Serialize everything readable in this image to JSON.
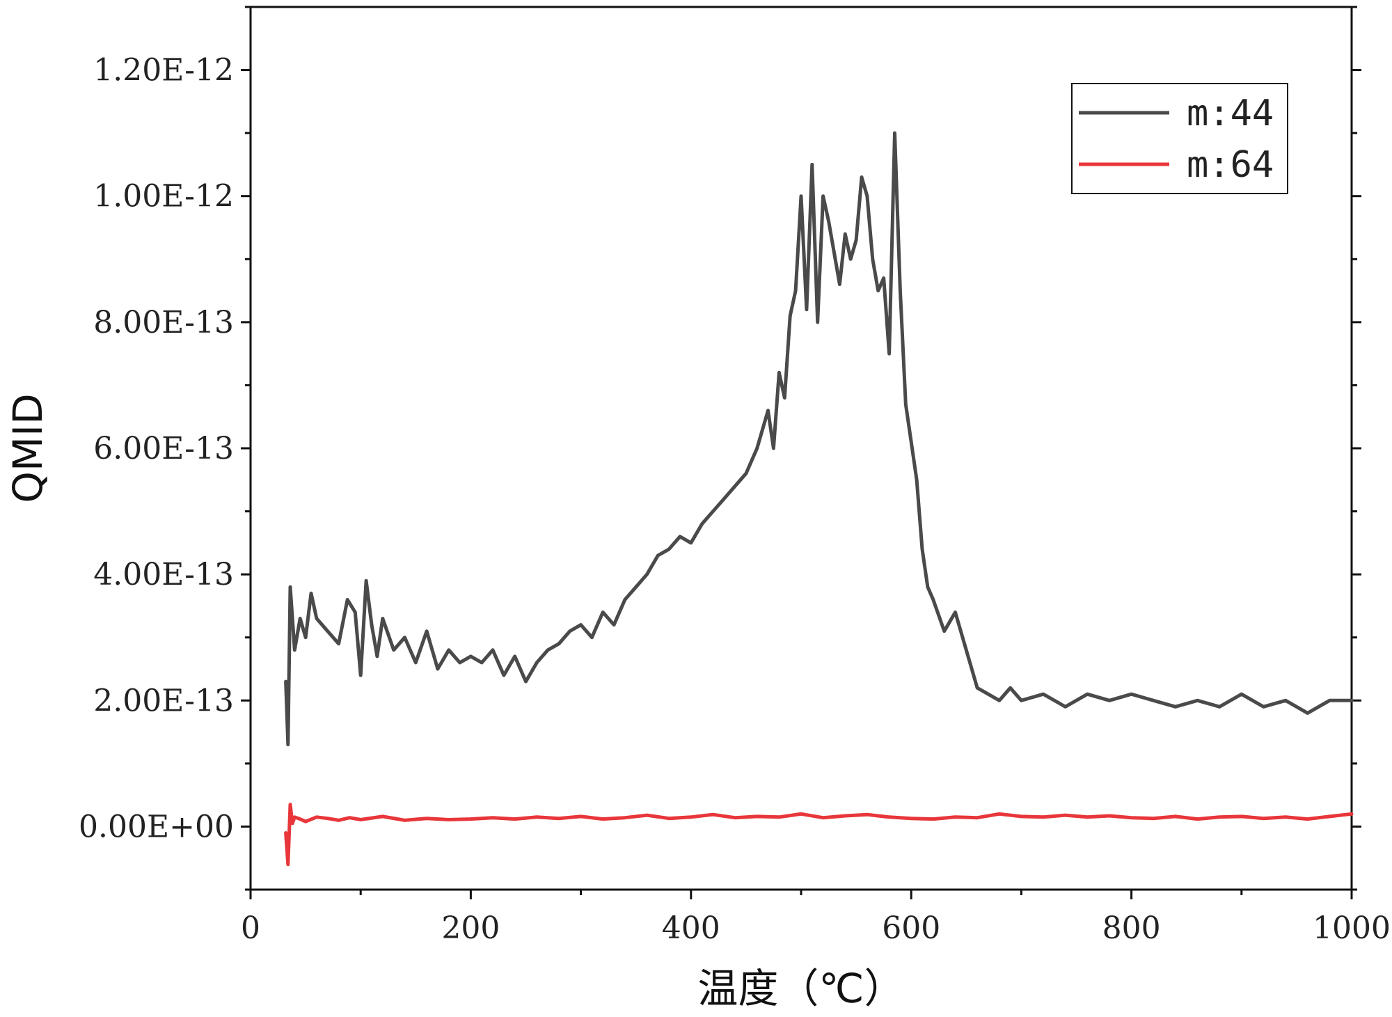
{
  "chart_data": {
    "type": "line",
    "title": "",
    "xlabel": "温度（℃）",
    "ylabel": "QMID",
    "xlim": [
      0,
      1000
    ],
    "ylim": [
      -1e-13,
      1.3e-12
    ],
    "x_ticks": [
      "0",
      "200",
      "400",
      "600",
      "800",
      "1000"
    ],
    "y_ticks": [
      "0.00E+00",
      "2.00E-13",
      "4.00E-13",
      "6.00E-13",
      "8.00E-13",
      "1.00E-12",
      "1.20E-12"
    ],
    "legend_position": "top-right",
    "grid": false,
    "series": [
      {
        "name": "m:44",
        "color": "#4a4a4a",
        "x": [
          32,
          34,
          36,
          40,
          45,
          50,
          55,
          60,
          70,
          80,
          88,
          95,
          100,
          105,
          110,
          115,
          120,
          130,
          140,
          150,
          160,
          170,
          180,
          190,
          200,
          210,
          220,
          230,
          240,
          250,
          260,
          270,
          280,
          290,
          300,
          310,
          320,
          330,
          340,
          350,
          360,
          370,
          380,
          390,
          400,
          410,
          420,
          430,
          440,
          450,
          460,
          470,
          475,
          480,
          485,
          490,
          495,
          500,
          505,
          510,
          515,
          520,
          525,
          530,
          535,
          540,
          545,
          550,
          555,
          560,
          565,
          570,
          575,
          580,
          585,
          590,
          595,
          600,
          605,
          610,
          615,
          620,
          630,
          640,
          650,
          660,
          670,
          680,
          690,
          700,
          720,
          740,
          760,
          780,
          800,
          820,
          840,
          860,
          880,
          900,
          920,
          940,
          960,
          980,
          1000
        ],
        "y": [
          2.3e-13,
          1.3e-13,
          3.8e-13,
          2.8e-13,
          3.3e-13,
          3e-13,
          3.7e-13,
          3.3e-13,
          3.1e-13,
          2.9e-13,
          3.6e-13,
          3.4e-13,
          2.4e-13,
          3.9e-13,
          3.2e-13,
          2.7e-13,
          3.3e-13,
          2.8e-13,
          3e-13,
          2.6e-13,
          3.1e-13,
          2.5e-13,
          2.8e-13,
          2.6e-13,
          2.7e-13,
          2.6e-13,
          2.8e-13,
          2.4e-13,
          2.7e-13,
          2.3e-13,
          2.6e-13,
          2.8e-13,
          2.9e-13,
          3.1e-13,
          3.2e-13,
          3e-13,
          3.4e-13,
          3.2e-13,
          3.6e-13,
          3.8e-13,
          4e-13,
          4.3e-13,
          4.4e-13,
          4.6e-13,
          4.5e-13,
          4.8e-13,
          5e-13,
          5.2e-13,
          5.4e-13,
          5.6e-13,
          6e-13,
          6.6e-13,
          6e-13,
          7.2e-13,
          6.8e-13,
          8.1e-13,
          8.5e-13,
          1e-12,
          8.2e-13,
          1.05e-12,
          8e-13,
          1e-12,
          9.6e-13,
          9.1e-13,
          8.6e-13,
          9.4e-13,
          9e-13,
          9.3e-13,
          1.03e-12,
          1e-12,
          9e-13,
          8.5e-13,
          8.7e-13,
          7.5e-13,
          1.1e-12,
          8.5e-13,
          6.7e-13,
          6.1e-13,
          5.5e-13,
          4.4e-13,
          3.8e-13,
          3.6e-13,
          3.1e-13,
          3.4e-13,
          2.8e-13,
          2.2e-13,
          2.1e-13,
          2e-13,
          2.2e-13,
          2e-13,
          2.1e-13,
          1.9e-13,
          2.1e-13,
          2e-13,
          2.1e-13,
          2e-13,
          1.9e-13,
          2e-13,
          1.9e-13,
          2.1e-13,
          1.9e-13,
          2e-13,
          1.8e-13,
          2e-13,
          2e-13
        ]
      },
      {
        "name": "m:64",
        "color": "#e8363a",
        "x": [
          32,
          34,
          36,
          38,
          40,
          45,
          50,
          60,
          70,
          80,
          90,
          100,
          120,
          140,
          160,
          180,
          200,
          220,
          240,
          260,
          280,
          300,
          320,
          340,
          360,
          380,
          400,
          420,
          440,
          460,
          480,
          500,
          520,
          540,
          560,
          580,
          600,
          620,
          640,
          660,
          680,
          700,
          720,
          740,
          760,
          780,
          800,
          820,
          840,
          860,
          880,
          900,
          920,
          940,
          960,
          980,
          1000
        ],
        "y": [
          -1e-14,
          -6e-14,
          3.5e-14,
          5e-15,
          1.5e-14,
          1.2e-14,
          8e-15,
          1.5e-14,
          1.3e-14,
          1e-14,
          1.4e-14,
          1.1e-14,
          1.6e-14,
          1e-14,
          1.3e-14,
          1.1e-14,
          1.2e-14,
          1.4e-14,
          1.2e-14,
          1.5e-14,
          1.3e-14,
          1.6e-14,
          1.2e-14,
          1.4e-14,
          1.8e-14,
          1.3e-14,
          1.5e-14,
          1.9e-14,
          1.4e-14,
          1.6e-14,
          1.5e-14,
          2e-14,
          1.4e-14,
          1.7e-14,
          1.9e-14,
          1.5e-14,
          1.3e-14,
          1.2e-14,
          1.5e-14,
          1.4e-14,
          2e-14,
          1.6e-14,
          1.5e-14,
          1.8e-14,
          1.5e-14,
          1.7e-14,
          1.4e-14,
          1.3e-14,
          1.6e-14,
          1.2e-14,
          1.5e-14,
          1.6e-14,
          1.3e-14,
          1.5e-14,
          1.2e-14,
          1.6e-14,
          2e-14
        ]
      }
    ]
  }
}
